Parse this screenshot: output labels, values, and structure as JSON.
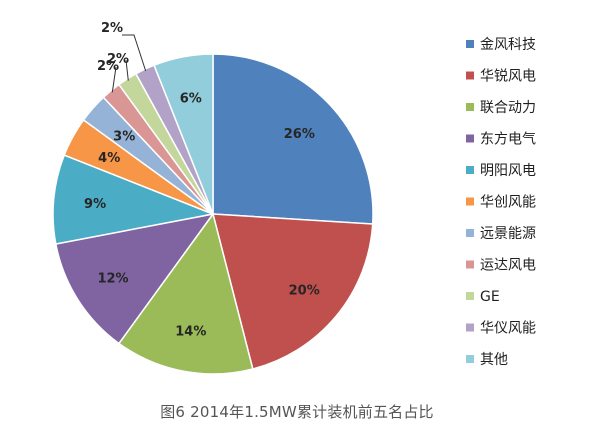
{
  "chart_data": {
    "type": "pie",
    "title": "",
    "series": [
      {
        "name": "金风科技",
        "value": 26,
        "label": "26%",
        "color": "#4f81bd"
      },
      {
        "name": "华锐风电",
        "value": 20,
        "label": "20%",
        "color": "#c0504d"
      },
      {
        "name": "联合动力",
        "value": 14,
        "label": "14%",
        "color": "#9bbb59"
      },
      {
        "name": "东方电气",
        "value": 12,
        "label": "12%",
        "color": "#8064a2"
      },
      {
        "name": "明阳风电",
        "value": 9,
        "label": "9%",
        "color": "#4bacc6"
      },
      {
        "name": "华创风能",
        "value": 4,
        "label": "4%",
        "color": "#f79646"
      },
      {
        "name": "远景能源",
        "value": 3,
        "label": "3%",
        "color": "#95b3d7"
      },
      {
        "name": "运达风电",
        "value": 2,
        "label": "2%",
        "color": "#d99694"
      },
      {
        "name": "GE",
        "value": 2,
        "label": "2%",
        "color": "#c3d69b"
      },
      {
        "name": "华仪风能",
        "value": 2,
        "label": "2%",
        "color": "#b2a2c7"
      },
      {
        "name": "其他",
        "value": 6,
        "label": "6%",
        "color": "#92cddc"
      }
    ],
    "legend_position": "right",
    "start_angle_deg": 0,
    "direction": "clockwise"
  },
  "caption": "图6 2014年1.5MW累计装机前五名占比"
}
